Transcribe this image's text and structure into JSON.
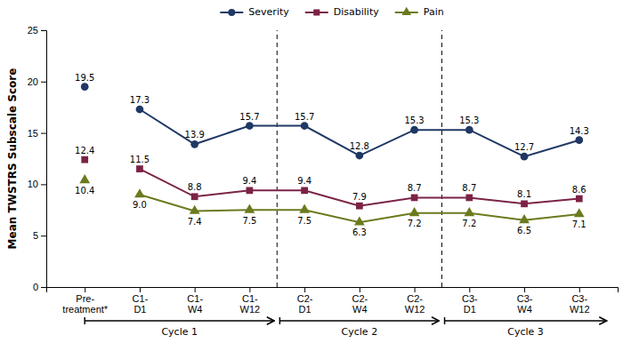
{
  "chart_data": {
    "type": "line",
    "categories": [
      "Pre-\ntreatment*",
      "C1-\nD1",
      "C1-\nW4",
      "C1-\nW12",
      "C2-\nD1",
      "C2-\nW4",
      "C2-\nW12",
      "C3-\nD1",
      "C3-\nW4",
      "C3-\nW12"
    ],
    "series": [
      {
        "name": "Severity",
        "color": "#1F3864",
        "marker": "circle",
        "values": [
          19.5,
          17.3,
          13.9,
          15.7,
          15.7,
          12.8,
          15.3,
          15.3,
          12.7,
          14.3
        ],
        "value_labels": [
          "19.5",
          "17.3",
          "13.9",
          "15.7",
          "15.7",
          "12.8",
          "15.3",
          "15.3",
          "12.7",
          "14.3"
        ]
      },
      {
        "name": "Disability",
        "color": "#7B2346",
        "marker": "square",
        "values": [
          12.4,
          11.5,
          8.8,
          9.4,
          9.4,
          7.9,
          8.7,
          8.7,
          8.1,
          8.6
        ],
        "value_labels": [
          "12.4",
          "11.5",
          "8.8",
          "9.4",
          "9.4",
          "7.9",
          "8.7",
          "8.7",
          "8.1",
          "8.6"
        ]
      },
      {
        "name": "Pain",
        "color": "#6B7A1E",
        "marker": "triangle",
        "values": [
          10.4,
          9.0,
          7.4,
          7.5,
          7.5,
          6.3,
          7.2,
          7.2,
          6.5,
          7.1
        ],
        "value_labels": [
          "10.4",
          "9.0",
          "7.4",
          "7.5",
          "7.5",
          "6.3",
          "7.2",
          "7.2",
          "6.5",
          "7.1"
        ]
      }
    ],
    "ylabel": "Mean TWSTRS Subscale Score",
    "ylim": [
      0,
      25
    ],
    "yticks": [
      0,
      5,
      10,
      15,
      20,
      25
    ],
    "grid": false,
    "legend": "top",
    "data_labels": true,
    "annotations": [
      {
        "text": "Cycle 1",
        "from": "Pre-\ntreatment*",
        "to": "C1-\nW12"
      },
      {
        "text": "Cycle 2",
        "from": "C2-\nD1",
        "to": "C2-\nW12"
      },
      {
        "text": "Cycle 3",
        "from": "C3-\nD1",
        "to": "C3-\nW12"
      }
    ]
  }
}
